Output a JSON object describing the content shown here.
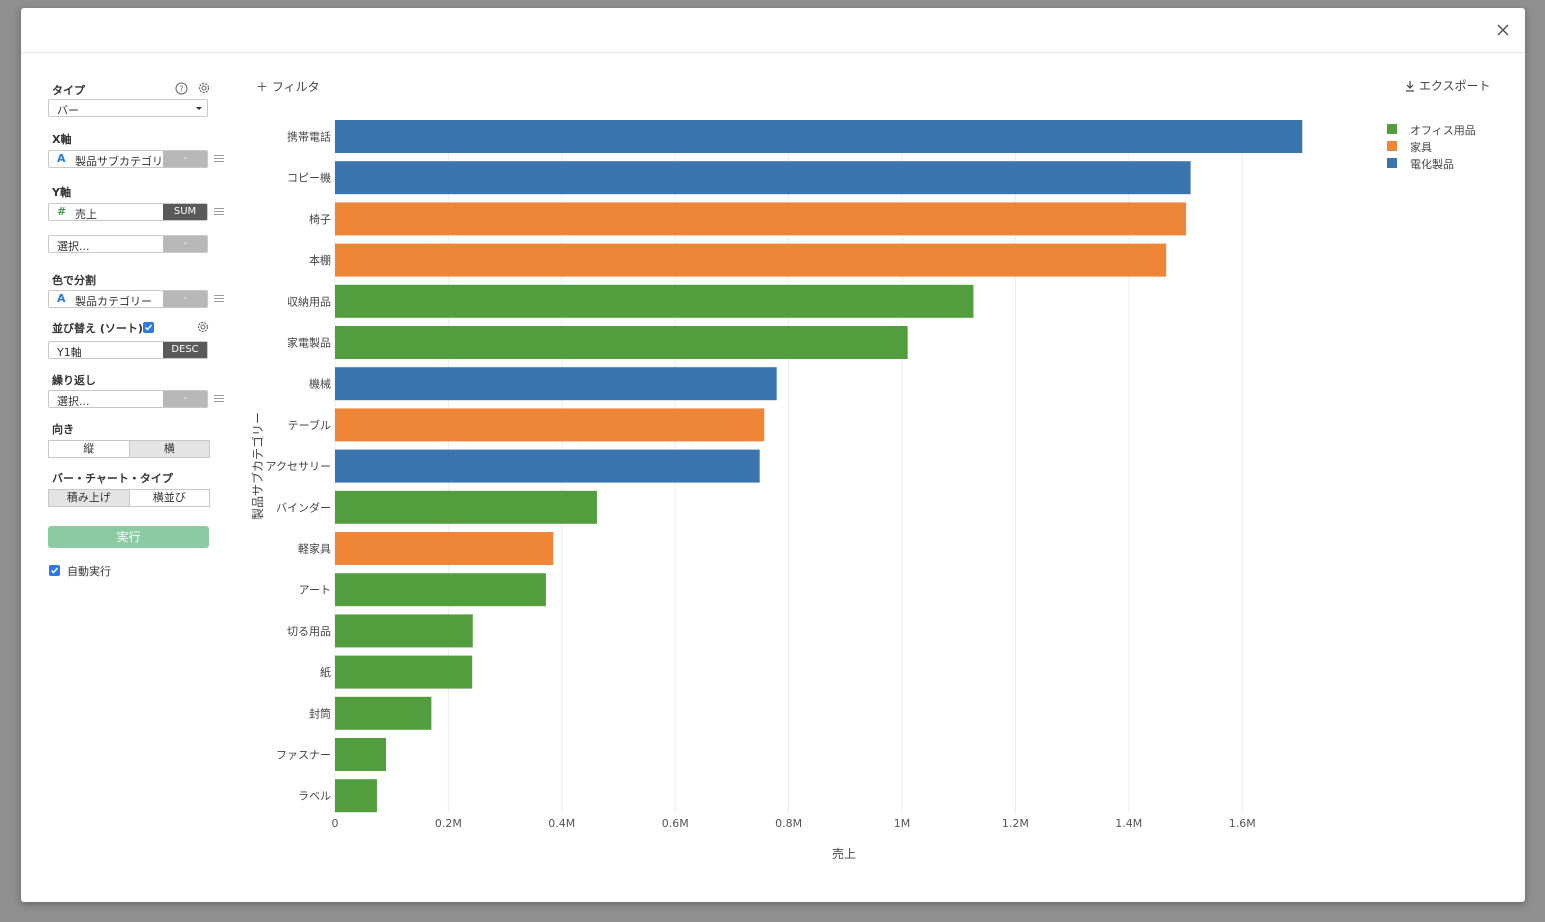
{
  "dialog": {
    "close_icon": "close-icon"
  },
  "sidebar": {
    "type_label": "タイプ",
    "type_value": "バー",
    "xaxis_label": "X軸",
    "xaxis_value": "製品サブカテゴリー",
    "xaxis_btn": "-",
    "yaxis_label": "Y軸",
    "yaxis_value": "売上",
    "yaxis_agg": "SUM",
    "yaxis2_placeholder": "選択...",
    "yaxis2_btn": "-",
    "color_label": "色で分割",
    "color_value": "製品カテゴリー",
    "color_btn": "-",
    "sort_label": "並び替え (ソート)",
    "sort_value": "Y1軸",
    "sort_order": "DESC",
    "repeat_label": "繰り返し",
    "repeat_placeholder": "選択...",
    "repeat_btn": "-",
    "orient_label": "向き",
    "orient_options": [
      "縦",
      "横"
    ],
    "bartype_label": "バー・チャート・タイプ",
    "bartype_options": [
      "積み上げ",
      "横並び"
    ],
    "run_label": "実行",
    "auto_run_label": "自動実行"
  },
  "toolbar": {
    "filter_label": "フィルタ",
    "export_label": "エクスポート"
  },
  "legend": [
    {
      "name": "オフィス用品",
      "color": "#529e3e"
    },
    {
      "name": "家具",
      "color": "#ef8536"
    },
    {
      "name": "電化製品",
      "color": "#3b75af"
    }
  ],
  "chart_data": {
    "type": "bar",
    "orientation": "horizontal",
    "ylabel": "製品サブカテゴリー",
    "xlabel": "売上",
    "xlim": [
      0,
      1800000
    ],
    "xticks": [
      {
        "v": 0,
        "label": "0"
      },
      {
        "v": 200000,
        "label": "0.2M"
      },
      {
        "v": 400000,
        "label": "0.4M"
      },
      {
        "v": 600000,
        "label": "0.6M"
      },
      {
        "v": 800000,
        "label": "0.8M"
      },
      {
        "v": 1000000,
        "label": "1M"
      },
      {
        "v": 1200000,
        "label": "1.2M"
      },
      {
        "v": 1400000,
        "label": "1.4M"
      },
      {
        "v": 1600000,
        "label": "1.6M"
      }
    ],
    "bars": [
      {
        "category": "携帯電話",
        "value": 1706000,
        "group": "電化製品"
      },
      {
        "category": "コピー機",
        "value": 1509000,
        "group": "電化製品"
      },
      {
        "category": "椅子",
        "value": 1501000,
        "group": "家具"
      },
      {
        "category": "本棚",
        "value": 1466000,
        "group": "家具"
      },
      {
        "category": "収納用品",
        "value": 1126000,
        "group": "オフィス用品"
      },
      {
        "category": "家電製品",
        "value": 1010000,
        "group": "オフィス用品"
      },
      {
        "category": "機械",
        "value": 779000,
        "group": "電化製品"
      },
      {
        "category": "テーブル",
        "value": 757000,
        "group": "家具"
      },
      {
        "category": "アクセサリー",
        "value": 749000,
        "group": "電化製品"
      },
      {
        "category": "バインダー",
        "value": 462000,
        "group": "オフィス用品"
      },
      {
        "category": "軽家具",
        "value": 385000,
        "group": "家具"
      },
      {
        "category": "アート",
        "value": 372000,
        "group": "オフィス用品"
      },
      {
        "category": "切る用品",
        "value": 243000,
        "group": "オフィス用品"
      },
      {
        "category": "紙",
        "value": 242000,
        "group": "オフィス用品"
      },
      {
        "category": "封筒",
        "value": 170000,
        "group": "オフィス用品"
      },
      {
        "category": "ファスナー",
        "value": 90000,
        "group": "オフィス用品"
      },
      {
        "category": "ラベル",
        "value": 74000,
        "group": "オフィス用品"
      }
    ]
  }
}
